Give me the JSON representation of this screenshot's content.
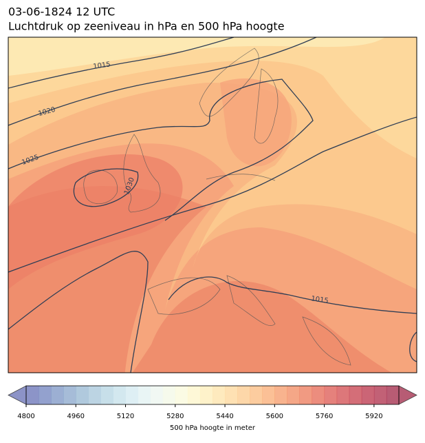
{
  "header": {
    "date": "03-06-1824 12 UTC",
    "title": "Luchtdruk op zeeniveau in hPa en 500 hPa hoogte"
  },
  "map": {
    "isobar_labels": [
      1015,
      1020,
      1025,
      1030,
      1015
    ]
  },
  "colorbar": {
    "label": "500 hPa hoogte in meter",
    "lim": [
      4800,
      6000
    ],
    "ticks": [
      4800,
      4960,
      5120,
      5280,
      5440,
      5600,
      5760,
      5920
    ],
    "colors": [
      "#6670b5",
      "#6f82bd",
      "#7b94c4",
      "#88a6cb",
      "#96b7d2",
      "#a5c6da",
      "#b4d4e2",
      "#c4e0ea",
      "#d3eaf0",
      "#e1f1f2",
      "#ecf5ef",
      "#f3f8e6",
      "#fafadb",
      "#fdf6ca",
      "#fdedb8",
      "#fde3a8",
      "#fdd79a",
      "#fcca8c",
      "#fbbb7f",
      "#f9ab73",
      "#f69a68",
      "#f2895f",
      "#ec7858",
      "#e56753",
      "#dc5750",
      "#d24a4d",
      "#c63d4b",
      "#b93248",
      "#ad2c48",
      "#a02646"
    ]
  }
}
